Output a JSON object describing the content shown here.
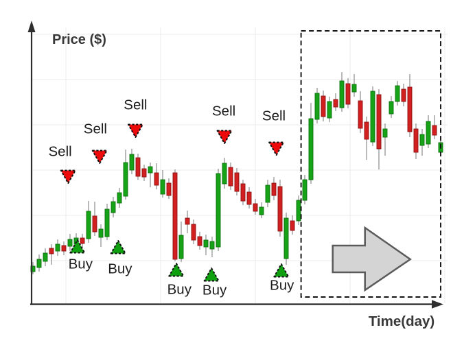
{
  "chart_data": {
    "type": "candlestick",
    "xlabel": "Time(day)",
    "ylabel": "Price ($)",
    "x_unit": "day",
    "grid": true,
    "axis_tick_labels_visible": false,
    "candles": [
      [
        11.75,
        15.25,
        10.75,
        13.75
      ],
      [
        13.25,
        18,
        11.75,
        16.25
      ],
      [
        15.5,
        20.25,
        13.75,
        18.5
      ],
      [
        20.25,
        21.75,
        14.25,
        18.25
      ],
      [
        19.25,
        23.5,
        17.5,
        21.75
      ],
      [
        21.25,
        22.75,
        17.75,
        19.25
      ],
      [
        21,
        25.5,
        19.25,
        23.5
      ],
      [
        21.75,
        25.75,
        20.25,
        24
      ],
      [
        24,
        25.5,
        20.5,
        22
      ],
      [
        23.75,
        37.5,
        22.25,
        33.75
      ],
      [
        32,
        37.25,
        24.75,
        26.25
      ],
      [
        24.25,
        29,
        20.75,
        27.25
      ],
      [
        24.5,
        36.5,
        23.25,
        34.5
      ],
      [
        33.25,
        39,
        31.5,
        37.25
      ],
      [
        36.75,
        42.25,
        35,
        40.5
      ],
      [
        39.25,
        56.25,
        38,
        51.5
      ],
      [
        48.75,
        56.5,
        47.25,
        54.5
      ],
      [
        53.25,
        54.75,
        45.25,
        46.5
      ],
      [
        49.25,
        50.75,
        44.75,
        46.25
      ],
      [
        47.75,
        51.5,
        42.5,
        50
      ],
      [
        47.75,
        51.25,
        41.75,
        43.25
      ],
      [
        40,
        48.75,
        38.75,
        45.25
      ],
      [
        44,
        45.75,
        38.25,
        39.5
      ],
      [
        47.75,
        49,
        15.5,
        16.25
      ],
      [
        16.5,
        30,
        15.25,
        25
      ],
      [
        31.25,
        34,
        25.75,
        29
      ],
      [
        29,
        30.75,
        21.75,
        23.25
      ],
      [
        24.5,
        26.25,
        19.75,
        21.25
      ],
      [
        20.75,
        25.25,
        17.75,
        23.25
      ],
      [
        20,
        24.5,
        17,
        22.75
      ],
      [
        20.75,
        49.25,
        19.25,
        47.5
      ],
      [
        43.75,
        53.25,
        42,
        51.25
      ],
      [
        49.75,
        51.5,
        41.5,
        43
      ],
      [
        47.75,
        49.5,
        39.5,
        41
      ],
      [
        43.75,
        45.25,
        36,
        37.5
      ],
      [
        40.75,
        42.5,
        34.75,
        36.25
      ],
      [
        36.5,
        38.25,
        32.5,
        33.75
      ],
      [
        32.5,
        37,
        31.25,
        35.25
      ],
      [
        37,
        45.25,
        35.25,
        43.25
      ],
      [
        44,
        46.25,
        37.75,
        39.5
      ],
      [
        42.75,
        45.25,
        24.5,
        26.5
      ],
      [
        16.5,
        33.25,
        14.25,
        31.25
      ],
      [
        30.25,
        32.25,
        25.25,
        26.75
      ],
      [
        30.25,
        39.5,
        28.75,
        37.75
      ],
      [
        37.75,
        47,
        36.25,
        45.25
      ],
      [
        45.25,
        73.25,
        43.75,
        67.5
      ],
      [
        67.25,
        78.75,
        65.75,
        76.75
      ],
      [
        75.75,
        77.75,
        66.5,
        68.25
      ],
      [
        67.75,
        75.5,
        66.25,
        73.75
      ],
      [
        74.5,
        76.75,
        70.25,
        71.75
      ],
      [
        71.5,
        84.5,
        70,
        81.25
      ],
      [
        80.25,
        82.25,
        71.25,
        72.75
      ],
      [
        77.25,
        83.75,
        75.5,
        80
      ],
      [
        74,
        77.5,
        62.25,
        64
      ],
      [
        66.25,
        68.25,
        52.5,
        60
      ],
      [
        59,
        79.25,
        57.5,
        77.5
      ],
      [
        76.25,
        78.25,
        49,
        56.5
      ],
      [
        60.75,
        65.75,
        54,
        63.75
      ],
      [
        69.25,
        75.75,
        67.75,
        73.75
      ],
      [
        73.75,
        81.25,
        72.25,
        79.5
      ],
      [
        78.25,
        80.25,
        72,
        73.75
      ],
      [
        79,
        83.75,
        60.75,
        62.75
      ],
      [
        63.75,
        65.75,
        52.75,
        55.25
      ],
      [
        57.75,
        63.75,
        54,
        61.75
      ],
      [
        58.25,
        68.75,
        56.75,
        66.5
      ],
      [
        65,
        68.75,
        60,
        61.5
      ],
      [
        55.25,
        60.75,
        53.75,
        58.75
      ]
    ],
    "signals": [
      {
        "label": "Sell",
        "day": 6.7,
        "price": 46.5,
        "label_day": 5.4,
        "label_price": 55.5
      },
      {
        "label": "Sell",
        "day": 11.8,
        "price": 53.75,
        "label_day": 11.1,
        "label_price": 63.75
      },
      {
        "label": "Sell",
        "day": 17.6,
        "price": 63.25,
        "label_day": 17.6,
        "label_price": 72.5
      },
      {
        "label": "Sell",
        "day": 32,
        "price": 61,
        "label_day": 31.9,
        "label_price": 70.25
      },
      {
        "label": "Sell",
        "day": 40.4,
        "price": 56.75,
        "label_day": 40,
        "label_price": 68.5
      },
      {
        "label": "Buy",
        "day": 8.2,
        "price": 20.75,
        "label_day": 8.7,
        "label_price": 14.5
      },
      {
        "label": "Buy",
        "day": 14.8,
        "price": 20.5,
        "label_day": 15.1,
        "label_price": 12.75
      },
      {
        "label": "Buy",
        "day": 24.2,
        "price": 12.25,
        "label_day": 24.7,
        "label_price": 5.25
      },
      {
        "label": "Buy",
        "day": 29.9,
        "price": 10.5,
        "label_day": 30.4,
        "label_price": 5
      },
      {
        "label": "Buy",
        "day": 41.2,
        "price": 12,
        "label_day": 41.3,
        "label_price": 6.75
      }
    ],
    "highlight_window": {
      "from_day": 44.4,
      "to_day": 67.0,
      "price_low": 2.5,
      "price_high": 99.5
    },
    "trend_arrow": {
      "direction": "right",
      "day": 55.8,
      "price": 16.25
    },
    "colors": {
      "up": "#17a317",
      "up_border": "#0a6e0a",
      "down": "#d21f1f",
      "down_border": "#8c1010",
      "wick": "#808080",
      "sell_marker": "#ee0a0a",
      "buy_marker": "#0fa00f",
      "marker_border": "#111111",
      "axis": "#2e2e2e",
      "grid": "#ebebeb",
      "arrow_fill": "#d4d4d4",
      "arrow_border": "#5a5a5a",
      "box_border": "#111111",
      "text": "#1b1b1b",
      "axis_text": "#383838"
    }
  }
}
